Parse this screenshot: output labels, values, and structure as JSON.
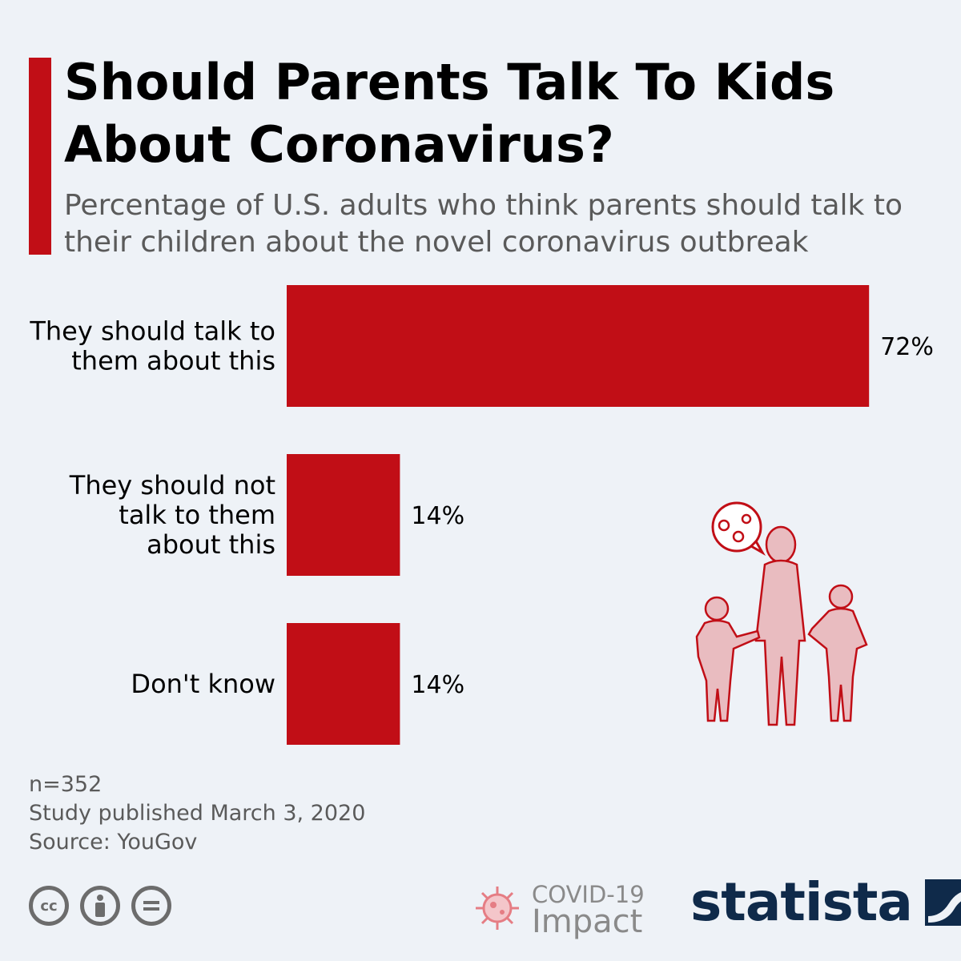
{
  "header": {
    "title": "Should Parents Talk To Kids About Coronavirus?",
    "subtitle": "Percentage of U.S. adults who think parents should talk to their children about the novel coronavirus outbreak"
  },
  "colors": {
    "accent": "#c10e16",
    "bar": "#c10e16",
    "background": "#eef2f7",
    "brand": "#0f2a4a"
  },
  "chart_data": {
    "type": "bar",
    "orientation": "horizontal",
    "title": "Should Parents Talk To Kids About Coronavirus?",
    "subtitle": "Percentage of U.S. adults who think parents should talk to their children about the novel coronavirus outbreak",
    "categories": [
      [
        "They should talk to",
        "them about this"
      ],
      [
        "They should not",
        "talk to them",
        "about this"
      ],
      [
        "Don't know"
      ]
    ],
    "values": [
      72,
      14,
      14
    ],
    "value_labels": [
      "72%",
      "14%",
      "14%"
    ],
    "unit": "%",
    "xlim": [
      0,
      80
    ],
    "grid": false,
    "legend": "none"
  },
  "footer": {
    "notes": [
      "n=352",
      "Study published March 3, 2020",
      "Source: YouGov"
    ],
    "covid_badge": {
      "line1": "COVID-19",
      "line2": "Impact"
    },
    "brand": "statista",
    "license_icons": [
      "creative-commons-icon",
      "attribution-icon",
      "no-derivatives-icon"
    ]
  }
}
